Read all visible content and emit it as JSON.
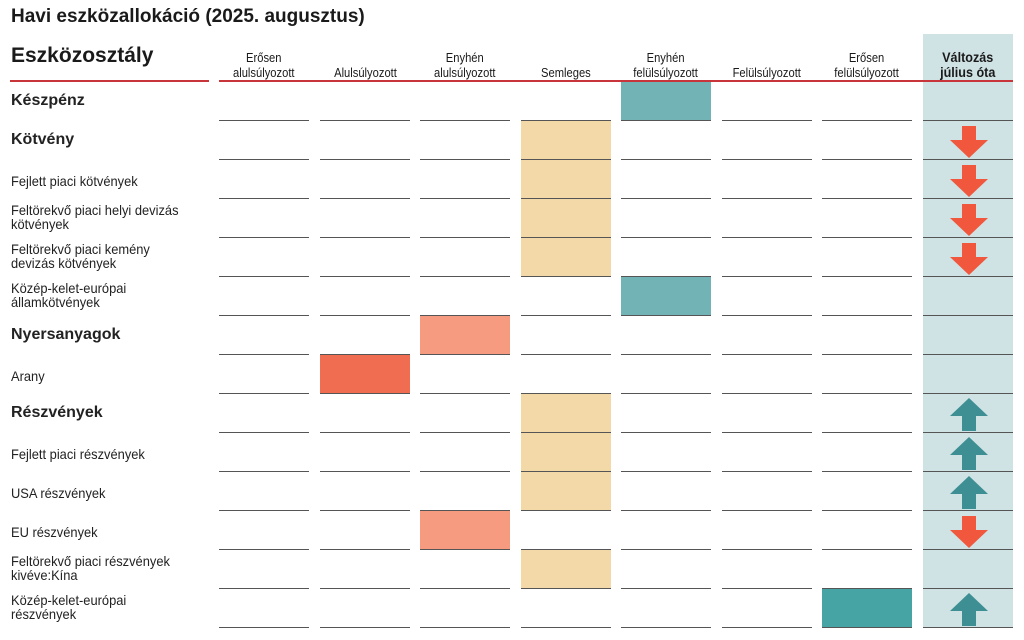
{
  "title": "Havi eszközallokáció (2025. augusztus)",
  "row_header": "Eszközosztály",
  "colors": {
    "semleges": "#f4d9a8",
    "enyhen_felul": "#72b4b5",
    "enyhen_alul": "#f69b80",
    "alul": "#f06d52",
    "eros_felul": "#46a4a5",
    "arrow_down": "#f0573d",
    "arrow_up": "#3d8f93",
    "change_band": "#cfe2e4"
  },
  "chart_data": {
    "type": "table",
    "columns": [
      "Erősen\nalulsúlyozott",
      "Alulsúlyozott",
      "Enyhén\nalulsúlyozott",
      "Semleges",
      "Enyhén\nfelülsúlyozott",
      "Felülsúlyozott",
      "Erősen\nfelülsúlyozott"
    ],
    "change_column": "Változás\njúlius óta",
    "rows": [
      {
        "label": "Készpénz",
        "bold": true,
        "position": "Enyhén felülsúlyozott",
        "change": ""
      },
      {
        "label": "Kötvény",
        "bold": true,
        "position": "Semleges",
        "change": "down"
      },
      {
        "label": "Fejlett piaci kötvények",
        "bold": false,
        "position": "Semleges",
        "change": "down"
      },
      {
        "label": "Feltörekvő piaci helyi devizás\nkötvények",
        "bold": false,
        "position": "Semleges",
        "change": "down"
      },
      {
        "label": "Feltörekvő piaci kemény\ndevizás kötvények",
        "bold": false,
        "position": "Semleges",
        "change": "down"
      },
      {
        "label": "Közép-kelet-európai\nállamkötvények",
        "bold": false,
        "position": "Enyhén felülsúlyozott",
        "change": ""
      },
      {
        "label": "Nyersanyagok",
        "bold": true,
        "position": "Enyhén alulsúlyozott",
        "change": ""
      },
      {
        "label": "Arany",
        "bold": false,
        "position": "Alulsúlyozott",
        "change": ""
      },
      {
        "label": "Részvények",
        "bold": true,
        "position": "Semleges",
        "change": "up"
      },
      {
        "label": "Fejlett piaci részvények",
        "bold": false,
        "position": "Semleges",
        "change": "up"
      },
      {
        "label": "USA részvények",
        "bold": false,
        "position": "Semleges",
        "change": "up"
      },
      {
        "label": "EU részvények",
        "bold": false,
        "position": "Enyhén alulsúlyozott",
        "change": "down"
      },
      {
        "label": "Feltörekvő piaci részvények\nkivéve:Kína",
        "bold": false,
        "position": "Semleges",
        "change": ""
      },
      {
        "label": "Közép-kelet-európai\nrészvények",
        "bold": false,
        "position": "Erősen felülsúlyozott",
        "change": "up"
      }
    ]
  }
}
